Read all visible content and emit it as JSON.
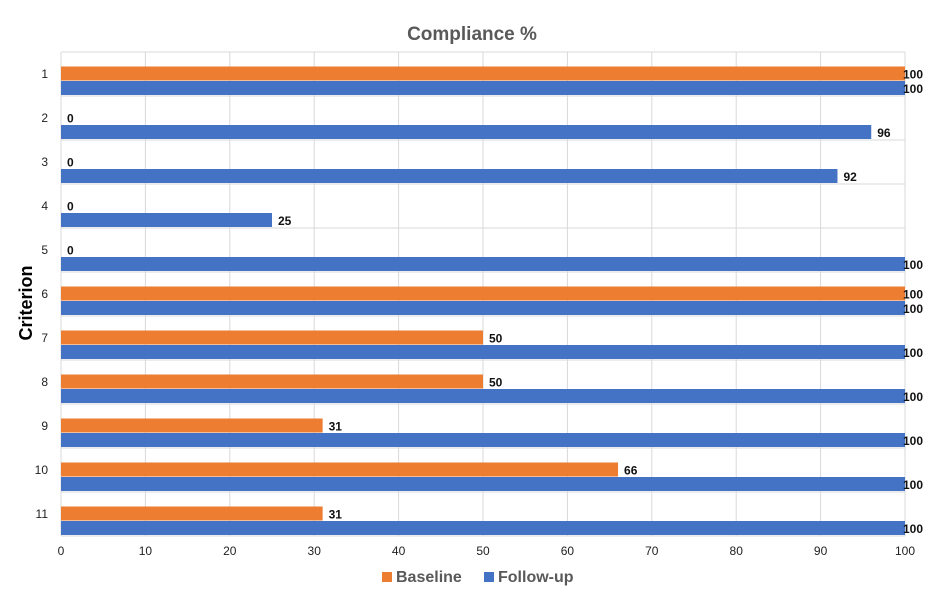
{
  "chart_data": {
    "type": "bar",
    "orientation": "horizontal",
    "title": "Compliance %",
    "xlabel": "",
    "ylabel": "Criterion",
    "categories": [
      "1",
      "2",
      "3",
      "4",
      "5",
      "6",
      "7",
      "8",
      "9",
      "10",
      "11"
    ],
    "series": [
      {
        "name": "Baseline",
        "color": "#ED7D31",
        "values": [
          100,
          0,
          0,
          0,
          0,
          100,
          50,
          50,
          31,
          66,
          31
        ]
      },
      {
        "name": "Follow-up",
        "color": "#4472C4",
        "values": [
          100,
          96,
          92,
          25,
          100,
          100,
          100,
          100,
          100,
          100,
          100
        ]
      }
    ],
    "xlim": [
      0,
      100
    ],
    "xticks": [
      "0",
      "10",
      "20",
      "30",
      "40",
      "50",
      "60",
      "70",
      "80",
      "90",
      "100"
    ],
    "grid": true,
    "legend_position": "bottom"
  }
}
